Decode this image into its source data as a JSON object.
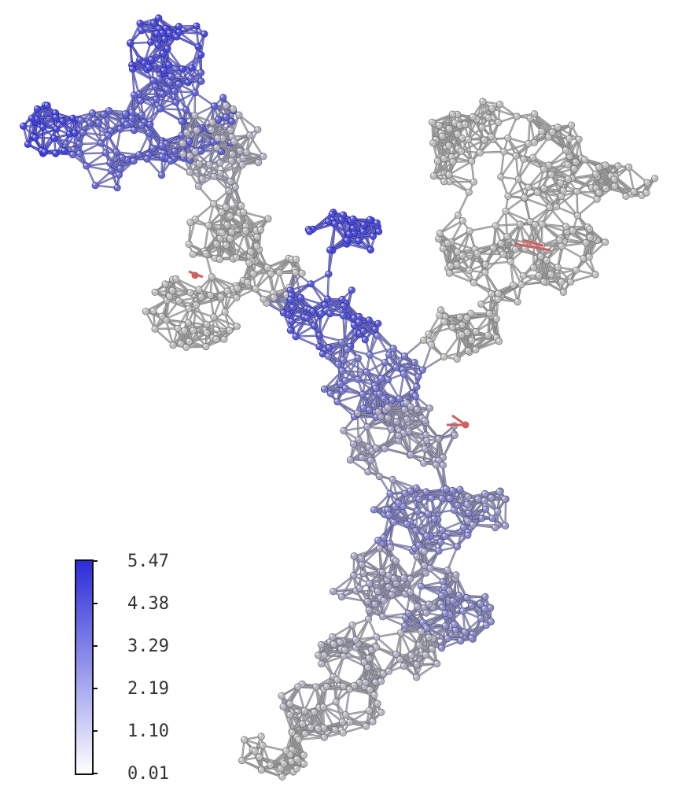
{
  "colorbar": {
    "ticks": [
      "5.47",
      "4.38",
      "3.29",
      "2.19",
      "1.10",
      "0.01"
    ],
    "min": 0.01,
    "max": 5.47,
    "color_high": "#2b2bd9",
    "color_low": "#ffffff"
  },
  "colors": {
    "node_neutral": "#b9b9b9",
    "node_blue": "#4646d8",
    "highlight_red": "#d06060",
    "edge_dark": "#6e6e6e"
  }
}
